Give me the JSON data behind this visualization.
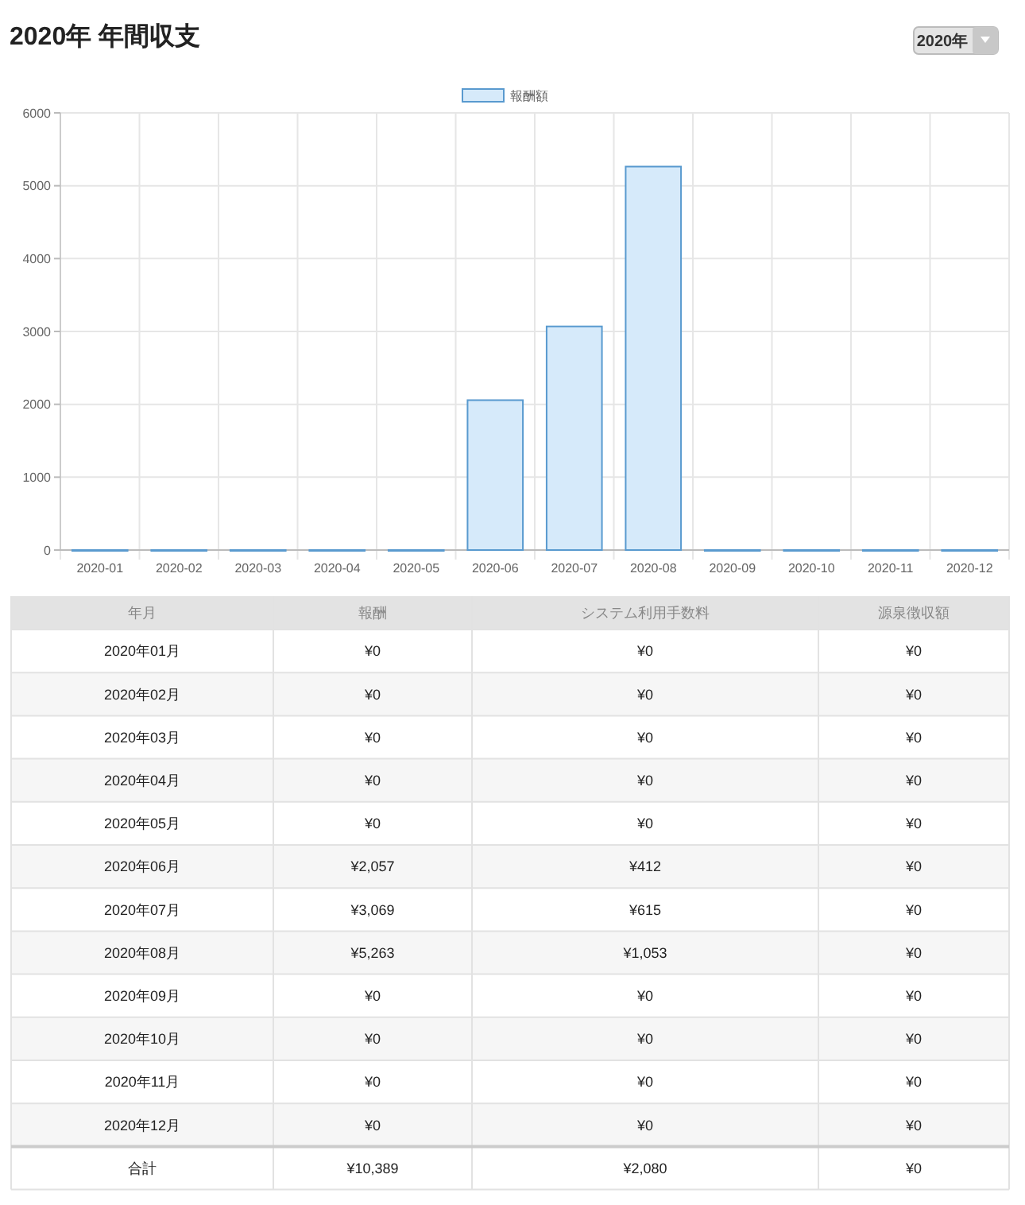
{
  "chart_data": [
    {
      "type": "bar",
      "title": "2020年 年間収支",
      "annotations": [
        "2020年"
      ],
      "categories": [
        "2020-01",
        "2020-02",
        "2020-03",
        "2020-04",
        "2020-05",
        "2020-06",
        "2020-07",
        "2020-08",
        "2020-09",
        "2020-10",
        "2020-11",
        "2020-12"
      ],
      "series": [
        {
          "name": "報酬額",
          "color": "#d6eafa",
          "values": [
            0,
            0,
            0,
            0,
            0,
            2057,
            3069,
            5263,
            0,
            0,
            0,
            0
          ]
        }
      ],
      "ylim": [
        0,
        6000
      ],
      "yticks": [
        0,
        1000,
        2000,
        3000,
        4000,
        5000,
        6000
      ],
      "grid": true,
      "legend": "top"
    },
    {
      "type": "other",
      "xlabel": "年月",
      "categories": [
        "2020年01月",
        "2020年02月",
        "2020年03月",
        "2020年04月",
        "2020年05月",
        "2020年06月",
        "2020年07月",
        "2020年08月",
        "2020年09月",
        "2020年10月",
        "2020年11月",
        "2020年12月",
        "合計"
      ],
      "series": [
        {
          "name": "報酬",
          "values": [
            0,
            0,
            0,
            0,
            0,
            2057,
            3069,
            5263,
            0,
            0,
            0,
            0,
            10389
          ],
          "value_labels": [
            "¥0",
            "¥0",
            "¥0",
            "¥0",
            "¥0",
            "¥2,057",
            "¥3,069",
            "¥5,263",
            "¥0",
            "¥0",
            "¥0",
            "¥0",
            "¥10,389"
          ]
        },
        {
          "name": "システム利用手数料",
          "values": [
            0,
            0,
            0,
            0,
            0,
            412,
            615,
            1053,
            0,
            0,
            0,
            0,
            2080
          ],
          "value_labels": [
            "¥0",
            "¥0",
            "¥0",
            "¥0",
            "¥0",
            "¥412",
            "¥615",
            "¥1,053",
            "¥0",
            "¥0",
            "¥0",
            "¥0",
            "¥2,080"
          ]
        },
        {
          "name": "源泉徴収額",
          "values": [
            0,
            0,
            0,
            0,
            0,
            0,
            0,
            0,
            0,
            0,
            0,
            0,
            0
          ],
          "value_labels": [
            "¥0",
            "¥0",
            "¥0",
            "¥0",
            "¥0",
            "¥0",
            "¥0",
            "¥0",
            "¥0",
            "¥0",
            "¥0",
            "¥0",
            "¥0"
          ]
        }
      ]
    }
  ]
}
